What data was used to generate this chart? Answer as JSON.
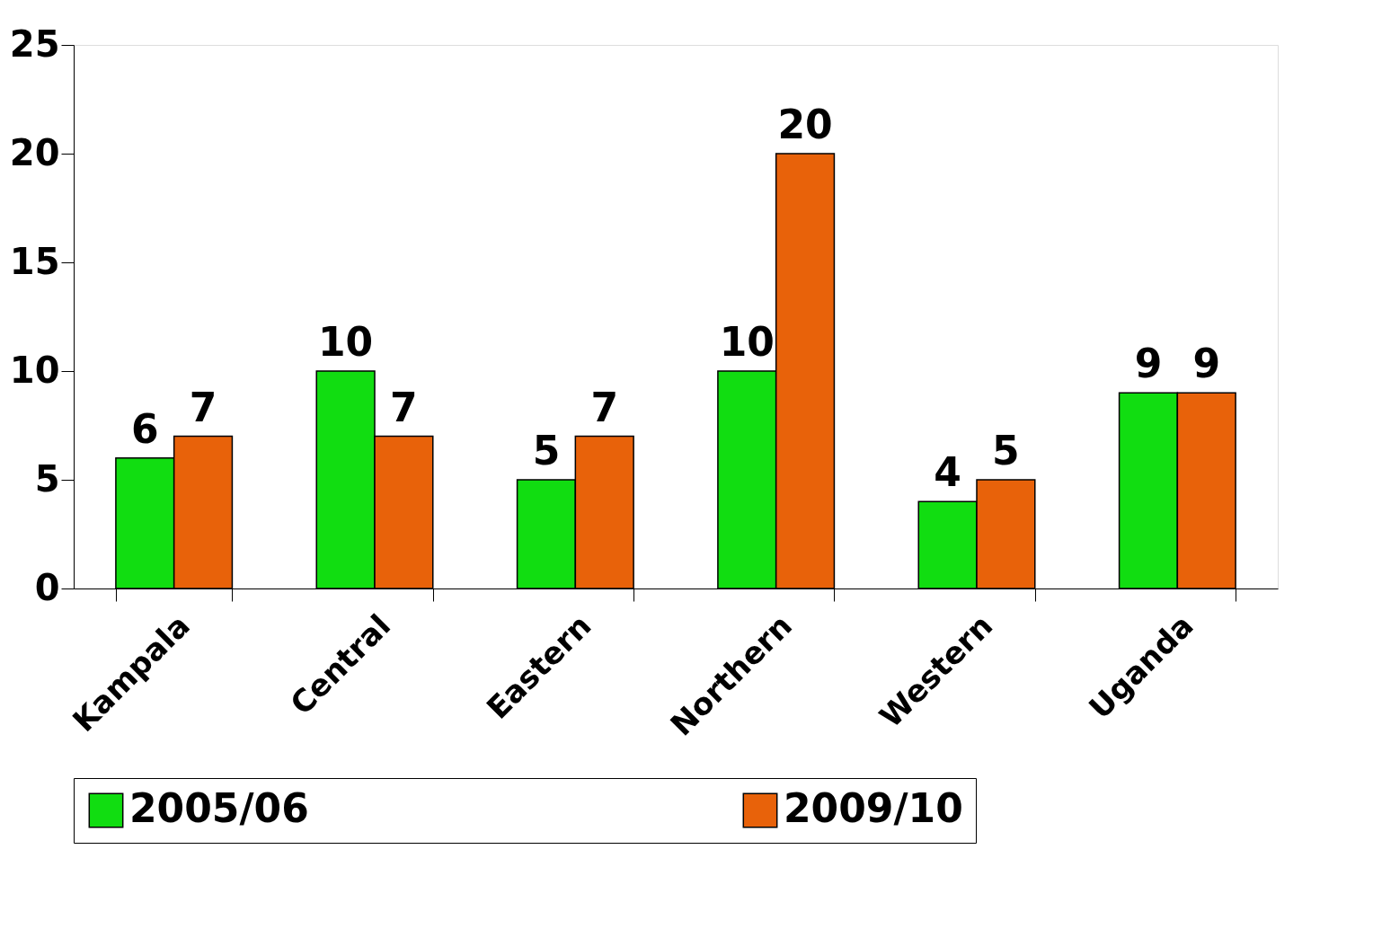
{
  "chart_data": {
    "type": "bar",
    "categories": [
      "Kampala",
      "Central",
      "Eastern",
      "Northern",
      "Western",
      "Uganda"
    ],
    "series": [
      {
        "name": "2005/06",
        "color": "#11dd11",
        "values": [
          6,
          10,
          5,
          10,
          4,
          9
        ]
      },
      {
        "name": "2009/10",
        "color": "#e8620a",
        "values": [
          7,
          7,
          7,
          20,
          5,
          9
        ]
      }
    ],
    "ylim": [
      0,
      25
    ],
    "yticks": [
      0,
      5,
      10,
      15,
      20,
      25
    ],
    "grid": false,
    "legend": "bottom",
    "data_labels": true
  }
}
